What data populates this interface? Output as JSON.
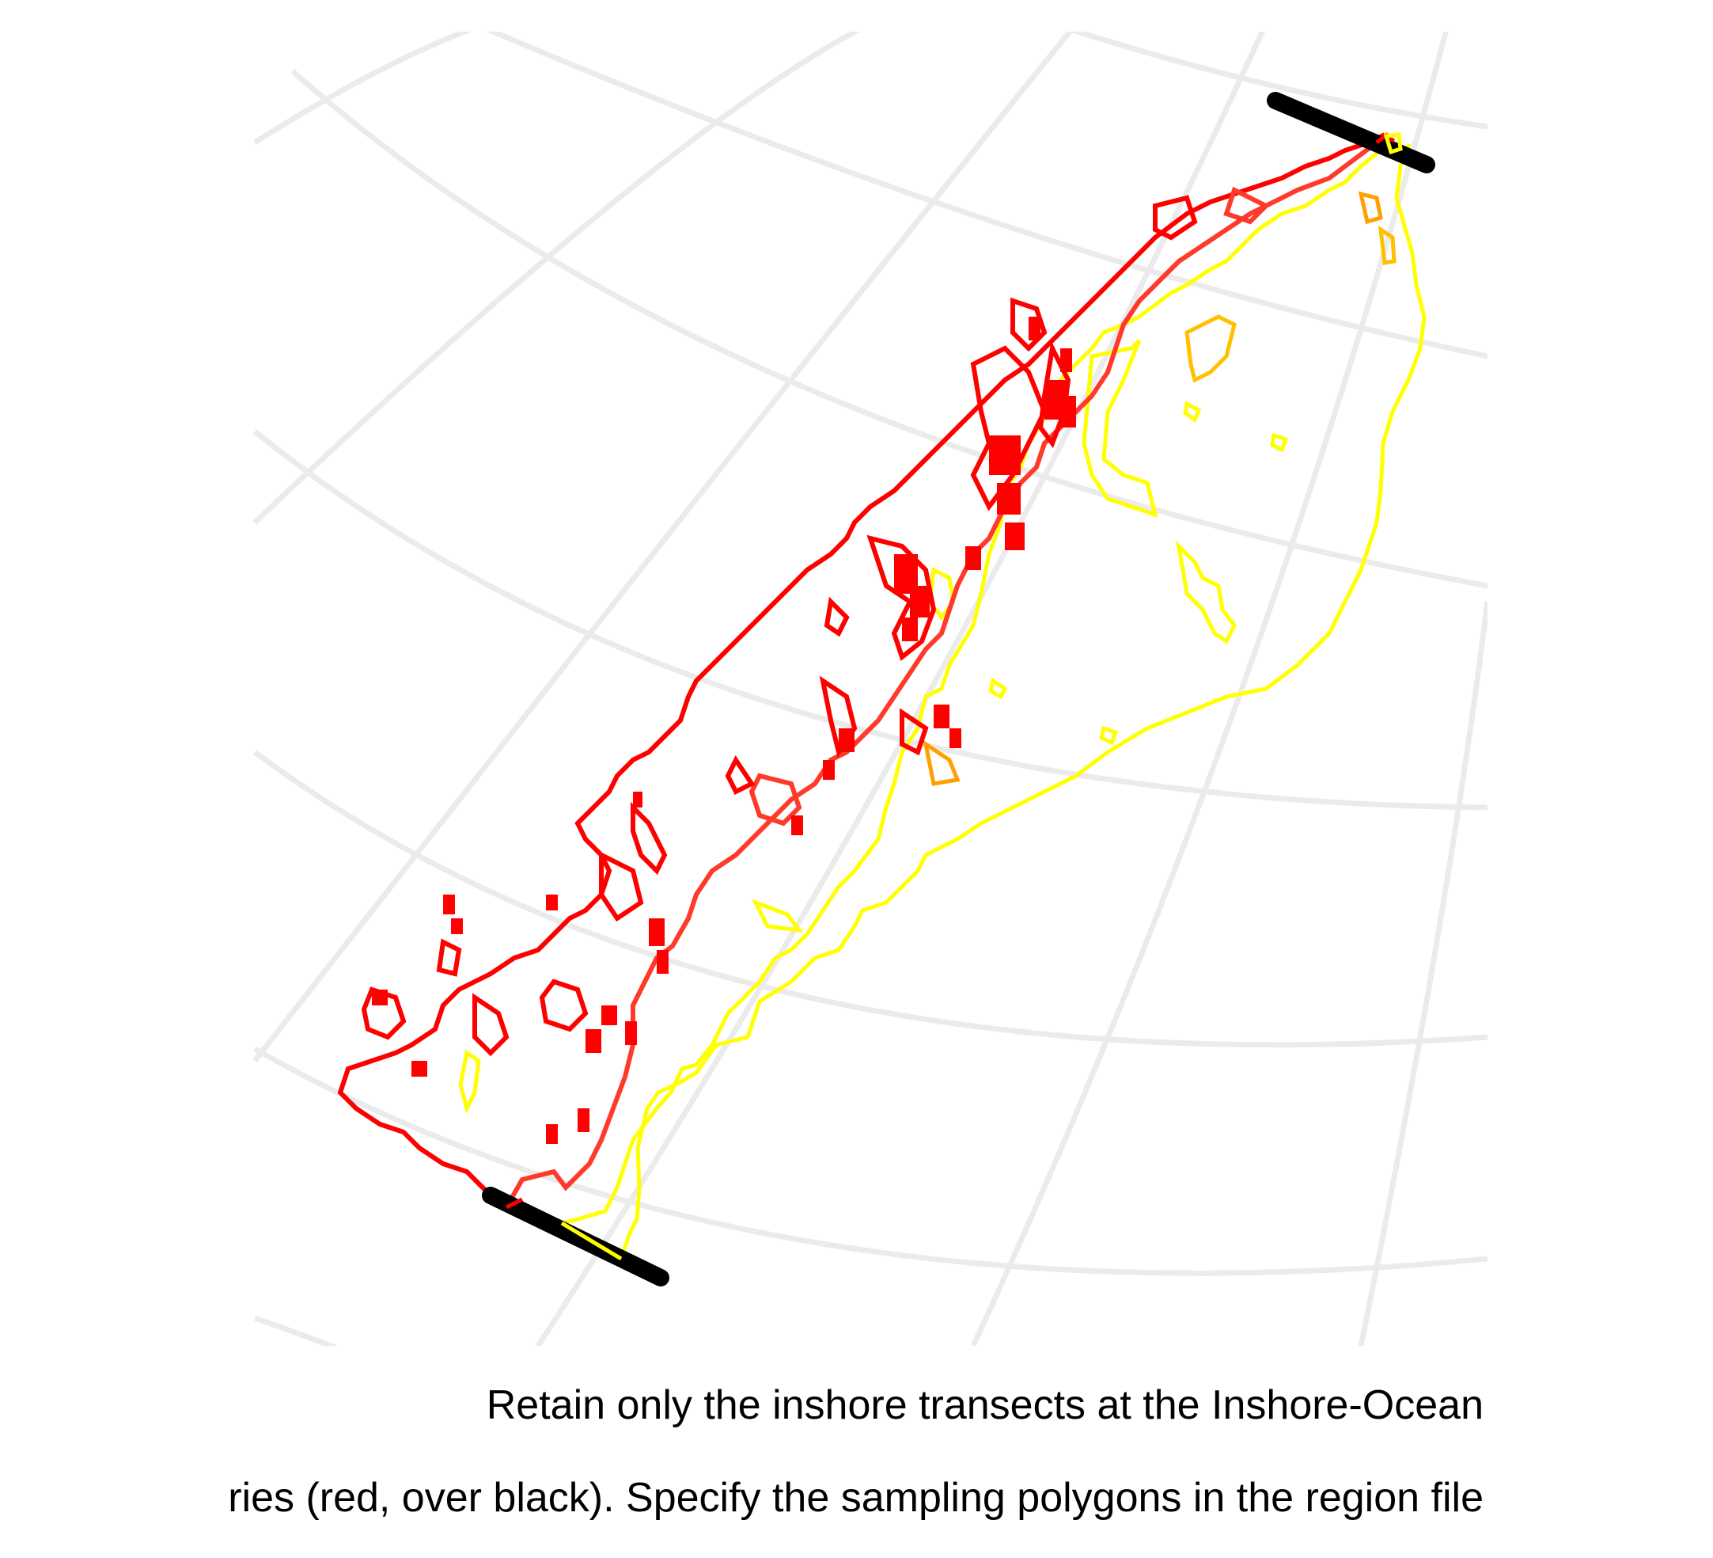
{
  "figure": {
    "caption": {
      "line1": "Retain only the inshore transects at the Inshore-Ocean",
      "line2": "ries (red, over black). Specify the sampling polygons in the region file"
    },
    "legend_colors_text": "red, over black"
  },
  "map_layers": {
    "graticule": {
      "color": "#ebebeb"
    },
    "boundary_bars": {
      "color": "#000000",
      "count": 2
    },
    "inshore_transects": {
      "colors": [
        "#ff0000",
        "#ff3a2a",
        "#ff5a3a"
      ]
    },
    "sampling_polygons": {
      "colors": [
        "#ffff00",
        "#ffc000",
        "#ffa000"
      ]
    }
  }
}
